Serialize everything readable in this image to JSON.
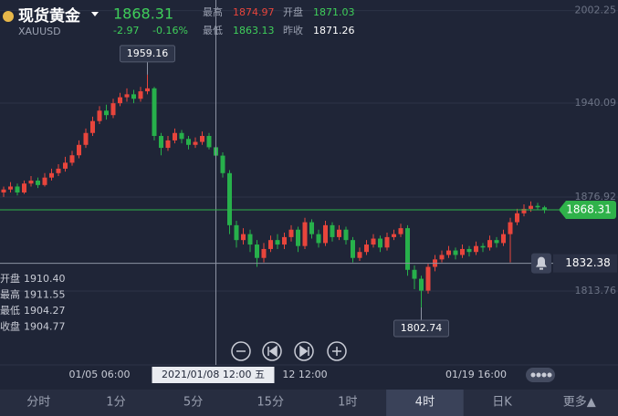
{
  "header": {
    "name": "现货黄金",
    "symbol": "XAUUSD",
    "change": "-2.97",
    "change_pct": "-0.16%",
    "stats": [
      {
        "label": "最高",
        "value": "1874.97"
      },
      {
        "label": "开盘",
        "value": "1871.03"
      },
      {
        "label": "最低",
        "value": "1863.13"
      },
      {
        "label": "昨收",
        "value": "1871.26"
      }
    ]
  },
  "chart_data": {
    "type": "candlestick",
    "categories": [
      null,
      null,
      null,
      null,
      null,
      null,
      null,
      null,
      null,
      null,
      null,
      null,
      null,
      null,
      "01/05 06:00",
      null,
      null,
      null,
      null,
      null,
      null,
      null,
      null,
      null,
      null,
      null,
      null,
      null,
      null,
      null,
      null,
      "2021/01/08 12:00 五",
      null,
      null,
      null,
      null,
      null,
      null,
      null,
      null,
      null,
      null,
      null,
      null,
      "12 12:00",
      null,
      null,
      null,
      null,
      null,
      null,
      null,
      null,
      null,
      null,
      null,
      null,
      null,
      null,
      null,
      null,
      null,
      null,
      null,
      null,
      null,
      null,
      null,
      null,
      "01/19 16:00",
      null,
      null,
      null,
      null,
      null,
      null,
      null,
      null,
      null,
      null
    ],
    "open": [
      1880,
      1882,
      1884,
      1880,
      1886,
      1888,
      1885,
      1890,
      1893,
      1896,
      1900,
      1905,
      1912,
      1920,
      1928,
      1935,
      1932,
      1940,
      1944,
      1946,
      1943,
      1948,
      1950,
      1918,
      1910,
      1915,
      1920,
      1916,
      1912,
      1914,
      1918,
      1910.4,
      1904.77,
      1893,
      1858,
      1848,
      1852,
      1845,
      1836,
      1842,
      1848,
      1845,
      1850,
      1855,
      1844,
      1860,
      1852,
      1846,
      1858,
      1850,
      1855,
      1848,
      1836,
      1840,
      1845,
      1849,
      1843,
      1850,
      1852,
      1856,
      1828,
      1822,
      1814,
      1830,
      1835,
      1838,
      1841,
      1838,
      1842,
      1840,
      1844,
      1843,
      1848,
      1846,
      1852,
      1860,
      1866,
      1869,
      1871,
      1870
    ],
    "high": [
      1884,
      1887,
      1886,
      1888,
      1891,
      1890,
      1893,
      1896,
      1899,
      1904,
      1908,
      1915,
      1923,
      1931,
      1938,
      1939,
      1943,
      1947,
      1950,
      1949,
      1951,
      1959.16,
      1951,
      1920,
      1918,
      1923,
      1922,
      1918,
      1917,
      1921,
      1920,
      1911.55,
      1907,
      1895,
      1861,
      1856,
      1855,
      1848,
      1846,
      1851,
      1852,
      1853,
      1858,
      1857,
      1863,
      1862,
      1855,
      1861,
      1860,
      1858,
      1857,
      1850,
      1843,
      1848,
      1852,
      1851,
      1853,
      1855,
      1859,
      1858,
      1831,
      1824,
      1832,
      1838,
      1841,
      1844,
      1843,
      1845,
      1844,
      1847,
      1846,
      1851,
      1850,
      1855,
      1863,
      1869,
      1872,
      1874,
      1873,
      1871
    ],
    "low": [
      1877,
      1880,
      1878,
      1879,
      1884,
      1883,
      1884,
      1888,
      1891,
      1894,
      1898,
      1903,
      1910,
      1918,
      1926,
      1929,
      1930,
      1938,
      1941,
      1940,
      1941,
      1946,
      1915,
      1905,
      1908,
      1913,
      1913,
      1909,
      1910,
      1912,
      1909,
      1904.27,
      1890,
      1852,
      1843,
      1845,
      1840,
      1830,
      1833,
      1840,
      1842,
      1842,
      1847,
      1840,
      1842,
      1849,
      1843,
      1844,
      1847,
      1848,
      1845,
      1833,
      1834,
      1838,
      1843,
      1840,
      1841,
      1848,
      1850,
      1824,
      1815,
      1802.74,
      1812,
      1827,
      1833,
      1836,
      1835,
      1836,
      1837,
      1838,
      1840,
      1841,
      1843,
      1844,
      1833,
      1858,
      1864,
      1867,
      1868,
      1866
    ],
    "close": [
      1882,
      1884,
      1880,
      1886,
      1888,
      1885,
      1890,
      1893,
      1896,
      1900,
      1905,
      1912,
      1920,
      1928,
      1935,
      1932,
      1940,
      1944,
      1946,
      1943,
      1948,
      1950,
      1918,
      1910,
      1915,
      1920,
      1916,
      1912,
      1914,
      1918,
      1910.4,
      1904.77,
      1893,
      1858,
      1848,
      1852,
      1845,
      1836,
      1842,
      1848,
      1845,
      1850,
      1855,
      1844,
      1860,
      1852,
      1846,
      1858,
      1850,
      1855,
      1848,
      1836,
      1840,
      1845,
      1849,
      1843,
      1850,
      1852,
      1856,
      1828,
      1822,
      1814,
      1830,
      1835,
      1838,
      1841,
      1838,
      1842,
      1840,
      1844,
      1843,
      1848,
      1846,
      1852,
      1860,
      1866,
      1869,
      1871,
      1870,
      1868.31
    ],
    "up_color": "#e8453c",
    "down_color": "#27b04b",
    "ylim": [
      1764.08,
      2009.39
    ],
    "yticks": [
      1813.76,
      1876.92,
      1940.09,
      2002.25
    ],
    "grid": true,
    "crosshair": {
      "index": 31,
      "value": 1832.38,
      "info": [
        {
          "label": "开盘",
          "value": "1910.40"
        },
        {
          "label": "最高",
          "value": "1911.55"
        },
        {
          "label": "最低",
          "value": "1904.27"
        },
        {
          "label": "收盘",
          "value": "1904.77"
        }
      ]
    }
  },
  "tabs": [
    "分时",
    "1分",
    "5分",
    "15分",
    "1时",
    "4时",
    "日K",
    "更多▲"
  ],
  "selected_tab": 5
}
